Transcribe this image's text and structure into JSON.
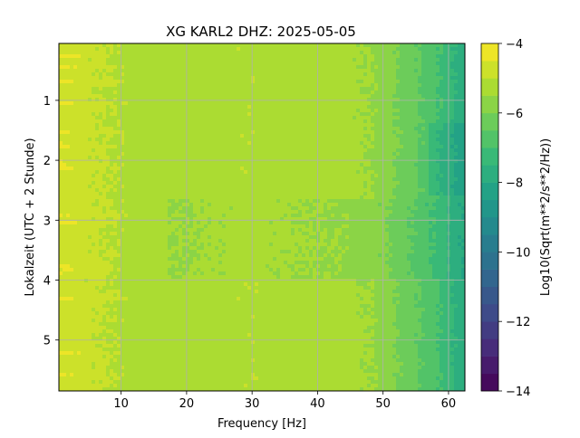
{
  "chart_data": {
    "type": "heatmap",
    "title": "XG KARL2  DHZ: 2025-05-05",
    "xlabel": "Frequency [Hz]",
    "ylabel": "Lokalzeit (UTC + 2 Stunde)",
    "xlim": [
      0.5,
      62.5
    ],
    "ylim": [
      5.85,
      0.05
    ],
    "y_inverted": true,
    "xticks": [
      10,
      20,
      30,
      40,
      50,
      60
    ],
    "yticks": [
      1,
      2,
      3,
      4,
      5
    ],
    "grid": true,
    "colormap": "viridis",
    "colorbar": {
      "label": "Log10(Sqrt(m**2/s**2/Hz))",
      "range": [
        -14,
        -4
      ],
      "ticks": [
        -14,
        -12,
        -10,
        -8,
        -6,
        -4
      ],
      "levels": 20
    },
    "spectral_profile": {
      "frequency_hz": [
        1,
        5,
        10,
        15,
        20,
        25,
        30,
        35,
        40,
        45,
        48,
        50,
        52,
        55,
        58,
        60,
        62
      ],
      "log10_amplitude": [
        -4.7,
        -4.9,
        -5.1,
        -5.3,
        -5.25,
        -5.15,
        -5.1,
        -5.2,
        -5.25,
        -5.35,
        -5.5,
        -5.7,
        -6.0,
        -6.4,
        -6.9,
        -7.3,
        -7.8
      ]
    },
    "noise_bursts_time_h": [
      0.25,
      0.45,
      0.7,
      1.05,
      1.55,
      1.75,
      2.05,
      2.15,
      2.9,
      3.05,
      3.75,
      3.85,
      4.3,
      5.2,
      5.6
    ],
    "quiet_period_time_h": [
      2.65,
      4.0
    ]
  }
}
